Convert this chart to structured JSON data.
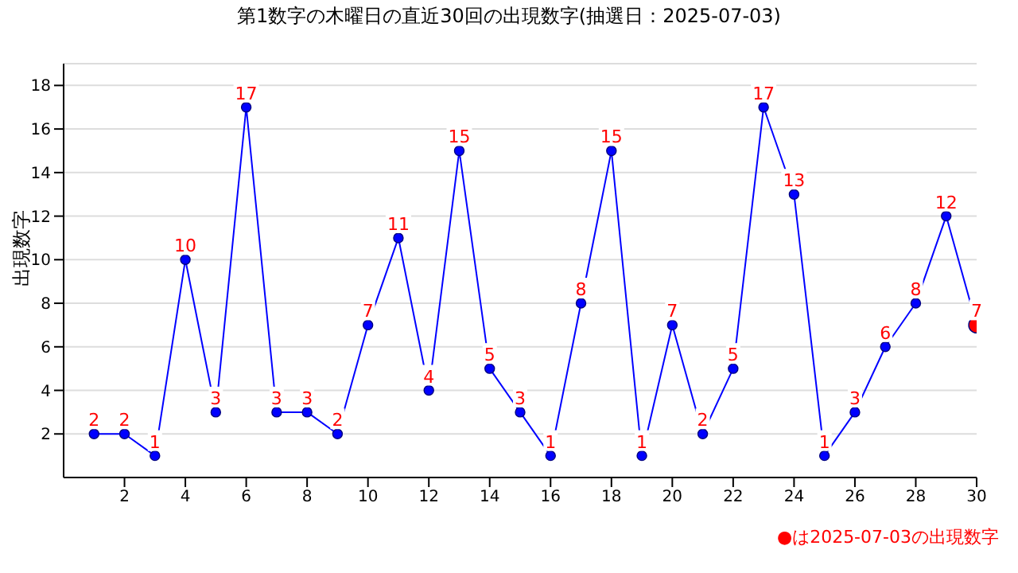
{
  "chart_data": {
    "type": "line",
    "title": "第1数字の木曜日の直近30回の出現数字(抽選日：2025-07-03)",
    "ylabel": "出現数字",
    "x": [
      1,
      2,
      3,
      4,
      5,
      6,
      7,
      8,
      9,
      10,
      11,
      12,
      13,
      14,
      15,
      16,
      17,
      18,
      19,
      20,
      21,
      22,
      23,
      24,
      25,
      26,
      27,
      28,
      29,
      30
    ],
    "series": [
      {
        "color": "#0000ff",
        "values": [
          2,
          2,
          1,
          10,
          3,
          17,
          3,
          3,
          2,
          7,
          11,
          4,
          15,
          5,
          3,
          1,
          8,
          15,
          1,
          7,
          2,
          5,
          17,
          13,
          1,
          3,
          6,
          8,
          12,
          7
        ],
        "colors": [
          "#0000ff",
          "#0000ff",
          "#0000ff",
          "#0000ff",
          "#0000ff",
          "#0000ff",
          "#0000ff",
          "#0000ff",
          "#0000ff",
          "#0000ff",
          "#0000ff",
          "#0000ff",
          "#0000ff",
          "#0000ff",
          "#0000ff",
          "#0000ff",
          "#0000ff",
          "#0000ff",
          "#0000ff",
          "#0000ff",
          "#0000ff",
          "#0000ff",
          "#0000ff",
          "#0000ff",
          "#0000ff",
          "#0000ff",
          "#0000ff",
          "#0000ff",
          "#0000ff",
          "#ff0000"
        ]
      }
    ],
    "xlim": [
      0,
      30
    ],
    "xticks": [
      2,
      4,
      6,
      8,
      10,
      12,
      14,
      16,
      18,
      20,
      22,
      24,
      26,
      28,
      30
    ],
    "ylim": [
      0,
      19
    ],
    "yticks": [
      2,
      4,
      6,
      8,
      10,
      12,
      14,
      16,
      18
    ],
    "grid": "y",
    "marker": "circle",
    "line_style": "solid",
    "data_labels": true,
    "annotations": [
      "●は2025-07-03の出現数字"
    ]
  }
}
